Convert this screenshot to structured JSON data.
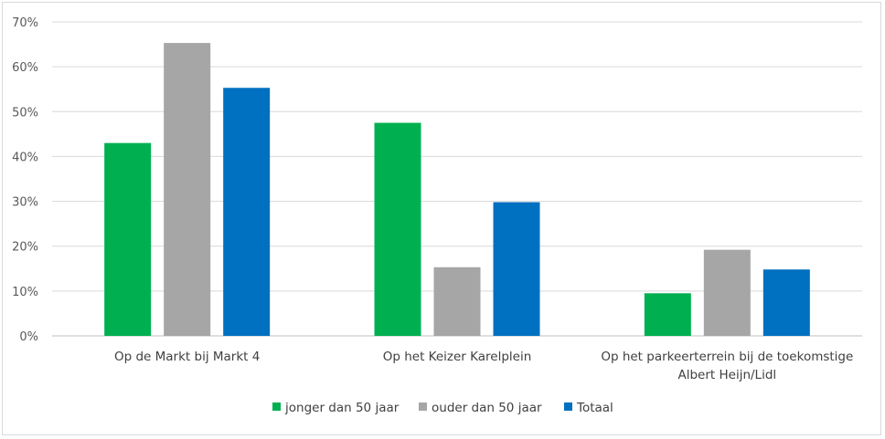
{
  "chart_data": {
    "type": "bar",
    "categories": [
      [
        "Op de Markt bij Markt 4"
      ],
      [
        "Op het Keizer Karelplein"
      ],
      [
        "Op het parkeerterrein bij de toekomstige",
        "Albert Heijn/Lidl"
      ]
    ],
    "series": [
      {
        "name": "jonger dan 50 jaar",
        "color": "#00b050",
        "values": [
          0.43,
          0.475,
          0.095
        ]
      },
      {
        "name": "ouder dan 50 jaar",
        "color": "#a6a6a6",
        "values": [
          0.653,
          0.153,
          0.192
        ]
      },
      {
        "name": "Totaal",
        "color": "#0070c0",
        "values": [
          0.553,
          0.298,
          0.148
        ]
      }
    ],
    "ylim": [
      0,
      0.7
    ],
    "yticks": [
      0,
      0.1,
      0.2,
      0.3,
      0.4,
      0.5,
      0.6,
      0.7
    ],
    "ytick_labels": [
      "0%",
      "10%",
      "20%",
      "30%",
      "40%",
      "50%",
      "60%",
      "70%"
    ],
    "grid": true,
    "legend_position": "bottom",
    "title": "",
    "xlabel": "",
    "ylabel": ""
  }
}
